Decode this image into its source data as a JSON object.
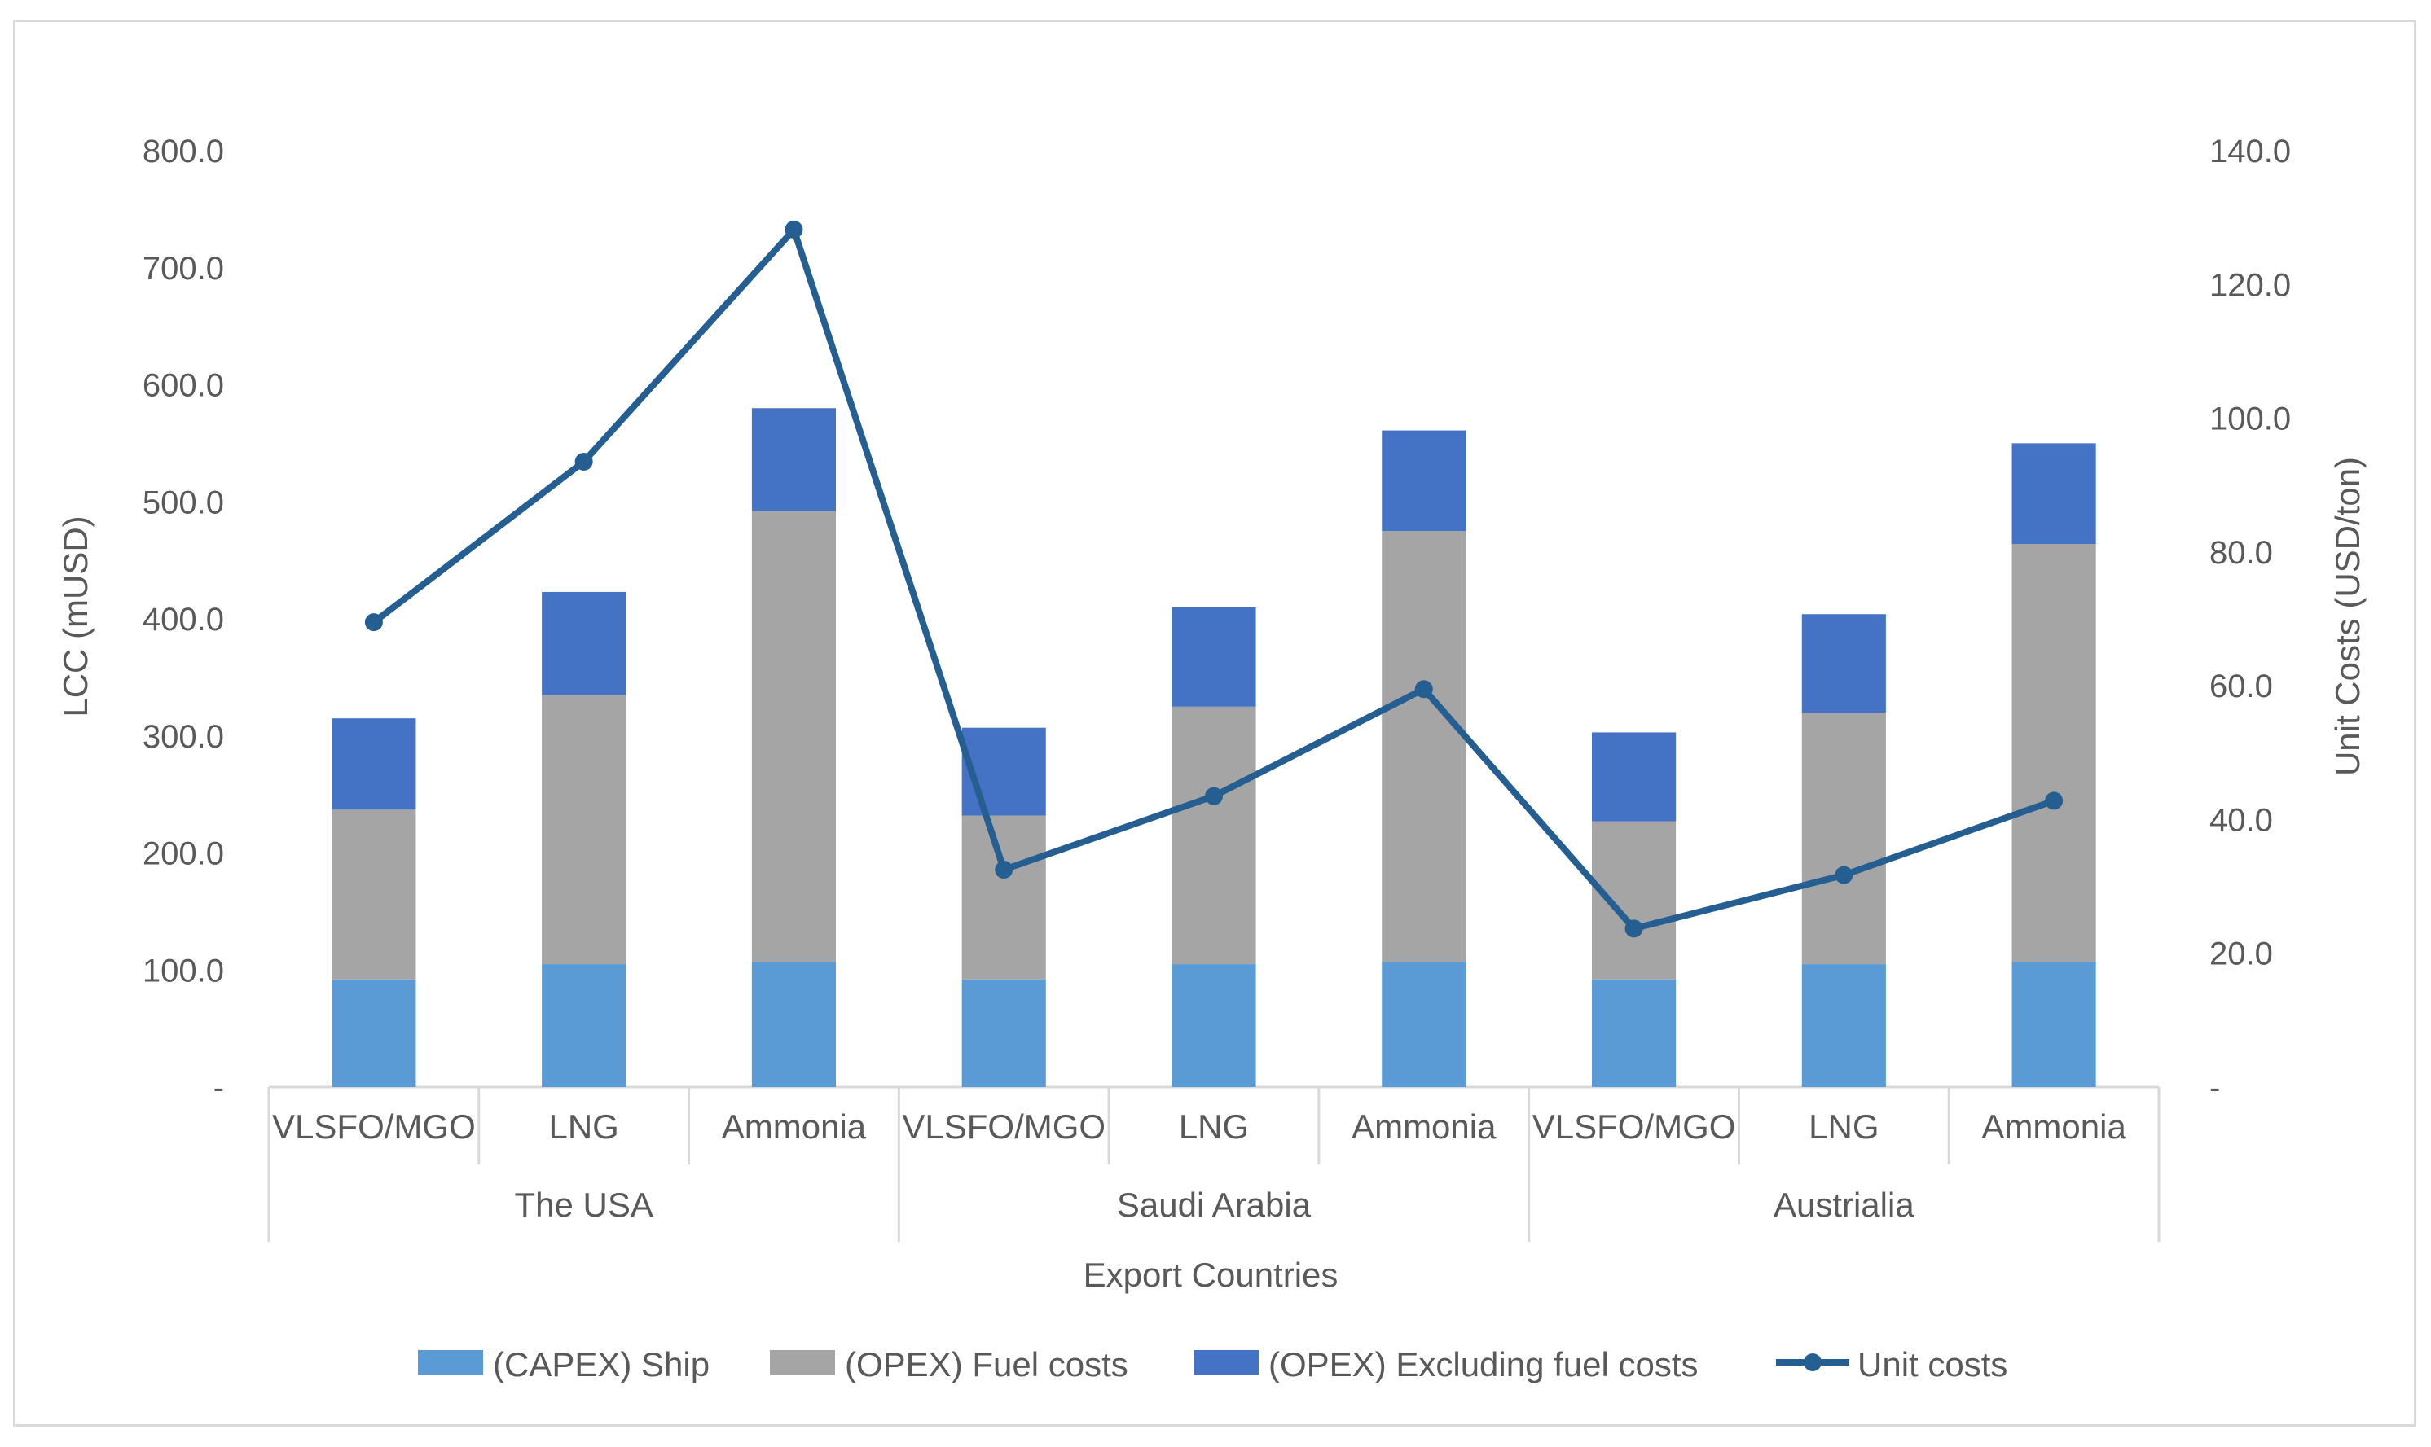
{
  "chart_data": {
    "type": "bar",
    "stacked": true,
    "title": "",
    "xlabel": "Export Countries",
    "ylabel": "LCC (mUSD)",
    "y2label": "Unit Costs (USD/ton)",
    "ylim": [
      0,
      800
    ],
    "y2lim": [
      0,
      140
    ],
    "yticks": [
      "-",
      "100.0",
      "200.0",
      "300.0",
      "400.0",
      "500.0",
      "600.0",
      "700.0",
      "800.0"
    ],
    "y2ticks": [
      "-",
      "20.0",
      "40.0",
      "60.0",
      "80.0",
      "100.0",
      "120.0",
      "140.0"
    ],
    "groups": [
      {
        "name": "The USA",
        "categories": [
          "VLSFO/MGO",
          "LNG",
          "Ammonia"
        ]
      },
      {
        "name": "Saudi Arabia",
        "categories": [
          "VLSFO/MGO",
          "LNG",
          "Ammonia"
        ]
      },
      {
        "name": "Austrialia",
        "categories": [
          "VLSFO/MGO",
          "LNG",
          "Ammonia"
        ]
      }
    ],
    "series": [
      {
        "name": "(CAPEX) Ship",
        "kind": "bar",
        "color": "#5b9bd5",
        "values": [
          92,
          105,
          107,
          92,
          105,
          107,
          92,
          105,
          107
        ]
      },
      {
        "name": "(OPEX) Fuel costs",
        "kind": "bar",
        "color": "#a5a5a5",
        "values": [
          145,
          230,
          385,
          140,
          220,
          368,
          135,
          215,
          357
        ]
      },
      {
        "name": "(OPEX) Excluding fuel costs",
        "kind": "bar",
        "color": "#4472c4",
        "values": [
          78,
          88,
          88,
          75,
          85,
          86,
          76,
          84,
          86
        ]
      },
      {
        "name": "Unit costs",
        "kind": "line",
        "axis": "secondary",
        "color": "#255e91",
        "values": [
          69.5,
          93.5,
          128.2,
          32.5,
          43.5,
          59.5,
          23.7,
          31.7,
          42.8
        ]
      }
    ],
    "legend_position": "bottom"
  }
}
